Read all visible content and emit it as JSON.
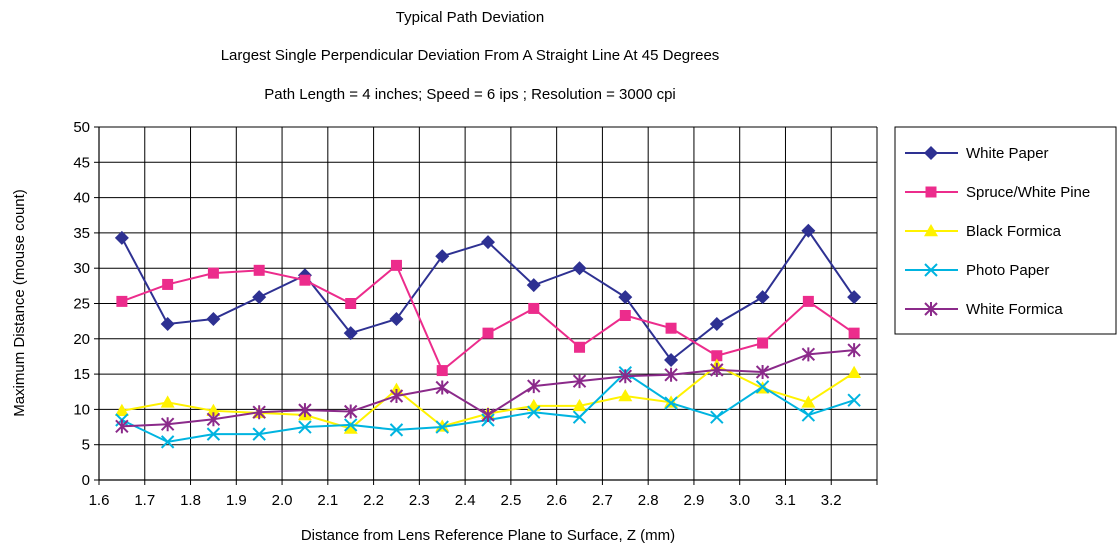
{
  "chart_data": {
    "type": "line",
    "title": "Typical Path Deviation",
    "subtitle": "Largest Single Perpendicular Deviation From A Straight Line At 45 Degrees",
    "subtitle2": "Path Length = 4 inches; Speed = 6 ips ; Resolution = 3000 cpi",
    "xlabel": "Distance from Lens Reference Plane to Surface, Z  (mm)",
    "ylabel": "Maximum Distance  (mouse count)",
    "xlim": [
      1.6,
      3.3
    ],
    "ylim": [
      0,
      50
    ],
    "x_ticks": [
      "1.6",
      "1.7",
      "1.8",
      "1.9",
      "2.0",
      "2.1",
      "2.2",
      "2.3",
      "2.4",
      "2.5",
      "2.6",
      "2.7",
      "2.8",
      "2.9",
      "3.0",
      "3.1",
      "3.2"
    ],
    "y_ticks": [
      "0",
      "5",
      "10",
      "15",
      "20",
      "25",
      "30",
      "35",
      "40",
      "45",
      "50"
    ],
    "grid": true,
    "legend_position": "right",
    "x": [
      1.65,
      1.75,
      1.85,
      1.95,
      2.05,
      2.15,
      2.25,
      2.35,
      2.45,
      2.55,
      2.65,
      2.75,
      2.85,
      2.95,
      3.05,
      3.15,
      3.25
    ],
    "series": [
      {
        "name": "White Paper",
        "color": "#2e3192",
        "marker": "diamond",
        "values": [
          34.3,
          22.1,
          22.8,
          25.9,
          29,
          20.8,
          22.8,
          31.7,
          33.7,
          27.6,
          30,
          25.9,
          17,
          22.1,
          25.9,
          35.3,
          25.9
        ]
      },
      {
        "name": "Spruce/White Pine",
        "color": "#ec2c8c",
        "marker": "square",
        "values": [
          25.3,
          27.7,
          29.3,
          29.7,
          28.3,
          25,
          30.4,
          15.5,
          20.8,
          24.3,
          18.8,
          23.3,
          21.5,
          17.6,
          19.4,
          25.3,
          20.8
        ]
      },
      {
        "name": "Black Formica",
        "color": "#fff200",
        "marker": "triangle",
        "values": [
          9.8,
          11,
          9.8,
          9.5,
          9.2,
          7.3,
          12.8,
          7.6,
          9.4,
          10.5,
          10.5,
          11.9,
          11,
          16.2,
          13,
          11,
          15.2
        ]
      },
      {
        "name": "Photo Paper",
        "color": "#00b4e0",
        "marker": "x",
        "values": [
          8.5,
          5.4,
          6.5,
          6.5,
          7.5,
          7.8,
          7.1,
          7.5,
          8.5,
          9.6,
          8.9,
          15.2,
          10.9,
          8.9,
          13.2,
          9.2,
          11.3
        ]
      },
      {
        "name": "White Formica",
        "color": "#8b2a8a",
        "marker": "star",
        "values": [
          7.6,
          7.9,
          8.6,
          9.6,
          9.9,
          9.7,
          11.9,
          13.1,
          9.2,
          13.3,
          14,
          14.7,
          14.9,
          15.6,
          15.3,
          17.8,
          18.4
        ]
      }
    ]
  }
}
